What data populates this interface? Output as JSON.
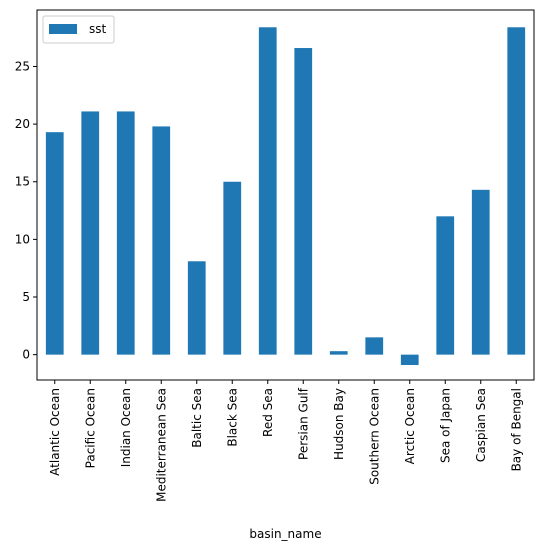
{
  "chart_data": {
    "type": "bar",
    "categories": [
      "Atlantic Ocean",
      "Pacific Ocean",
      "Indian Ocean",
      "Mediterranean Sea",
      "Baltic Sea",
      "Black Sea",
      "Red Sea",
      "Persian Gulf",
      "Hudson Bay",
      "Southern Ocean",
      "Arctic Ocean",
      "Sea of Japan",
      "Caspian Sea",
      "Bay of Bengal"
    ],
    "series": [
      {
        "name": "sst",
        "values": [
          19.3,
          21.1,
          21.1,
          19.8,
          8.1,
          15.0,
          28.4,
          26.6,
          0.3,
          1.5,
          -0.9,
          12.0,
          14.3,
          28.4
        ],
        "color": "#1f77b4"
      }
    ],
    "xlabel": "basin_name",
    "ylabel": "",
    "ylim": [
      -2.2,
      29.9
    ],
    "yticks": [
      0,
      5,
      10,
      15,
      20,
      25
    ],
    "grid": false,
    "legend_placement": "upper-left"
  }
}
